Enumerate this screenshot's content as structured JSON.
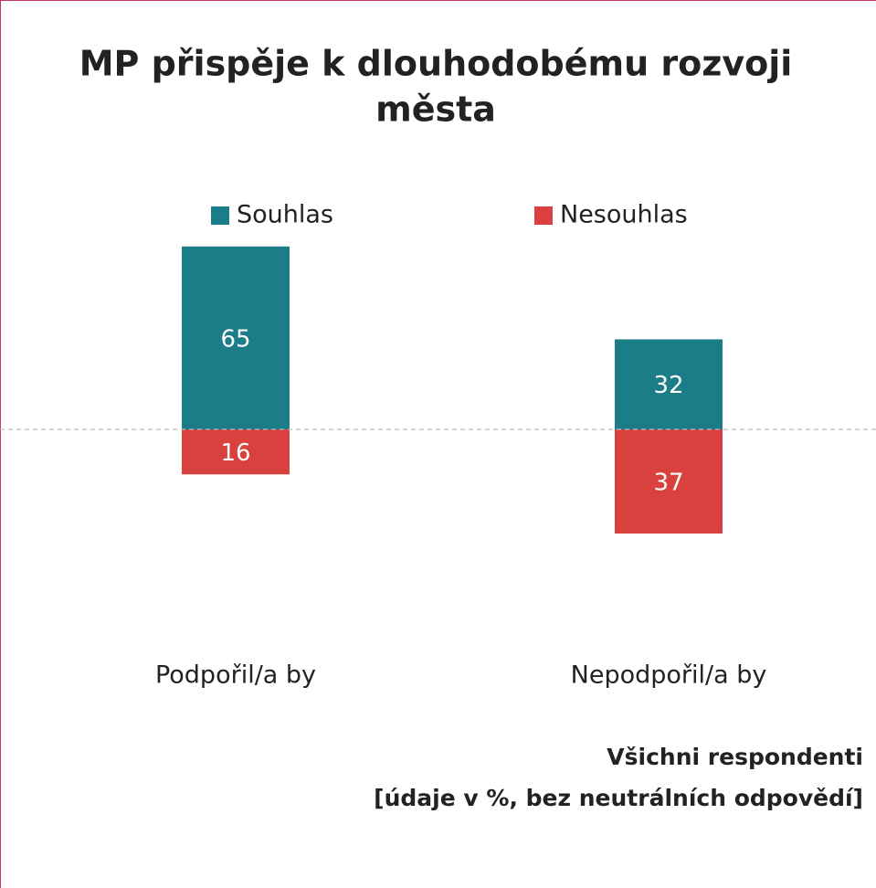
{
  "chart_data": {
    "type": "diverging_bar",
    "title": [
      "MP přispěje k dlouhodobému rozvoji",
      "města"
    ],
    "categories": [
      "Podpořil/a by",
      "Nepodpořil/a by"
    ],
    "series": [
      {
        "name": "Souhlas",
        "color": "#1b7d87",
        "values": [
          65,
          32
        ]
      },
      {
        "name": "Nesouhlas",
        "color": "#d9413e",
        "values": [
          16,
          37
        ]
      }
    ],
    "note": [
      "Všichni respondenti",
      "[údaje v %, bez neutrálních odpovědí]"
    ]
  }
}
